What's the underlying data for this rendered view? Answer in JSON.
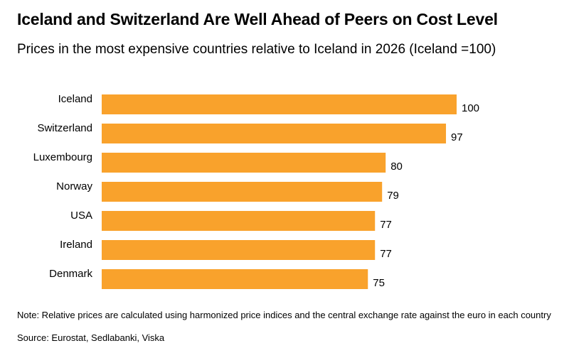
{
  "chart_data": {
    "type": "bar",
    "orientation": "horizontal",
    "title": "Iceland and Switzerland Are Well Ahead of Peers on Cost Level",
    "subtitle": "Prices in the most expensive countries relative to Iceland in 2026 (Iceland =100)",
    "categories": [
      "Iceland",
      "Switzerland",
      "Luxembourg",
      "Norway",
      "USA",
      "Ireland",
      "Denmark"
    ],
    "values": [
      100,
      97,
      80,
      79,
      77,
      77,
      75
    ],
    "xlim": [
      0,
      100
    ],
    "grid": false,
    "legend": "none",
    "bar_color": "#F9A22C",
    "note": "Note: Relative prices are calculated using harmonized price indices and the central exchange rate against the euro in each country",
    "source": "Source: Eurostat, Sedlabanki, Viska"
  }
}
